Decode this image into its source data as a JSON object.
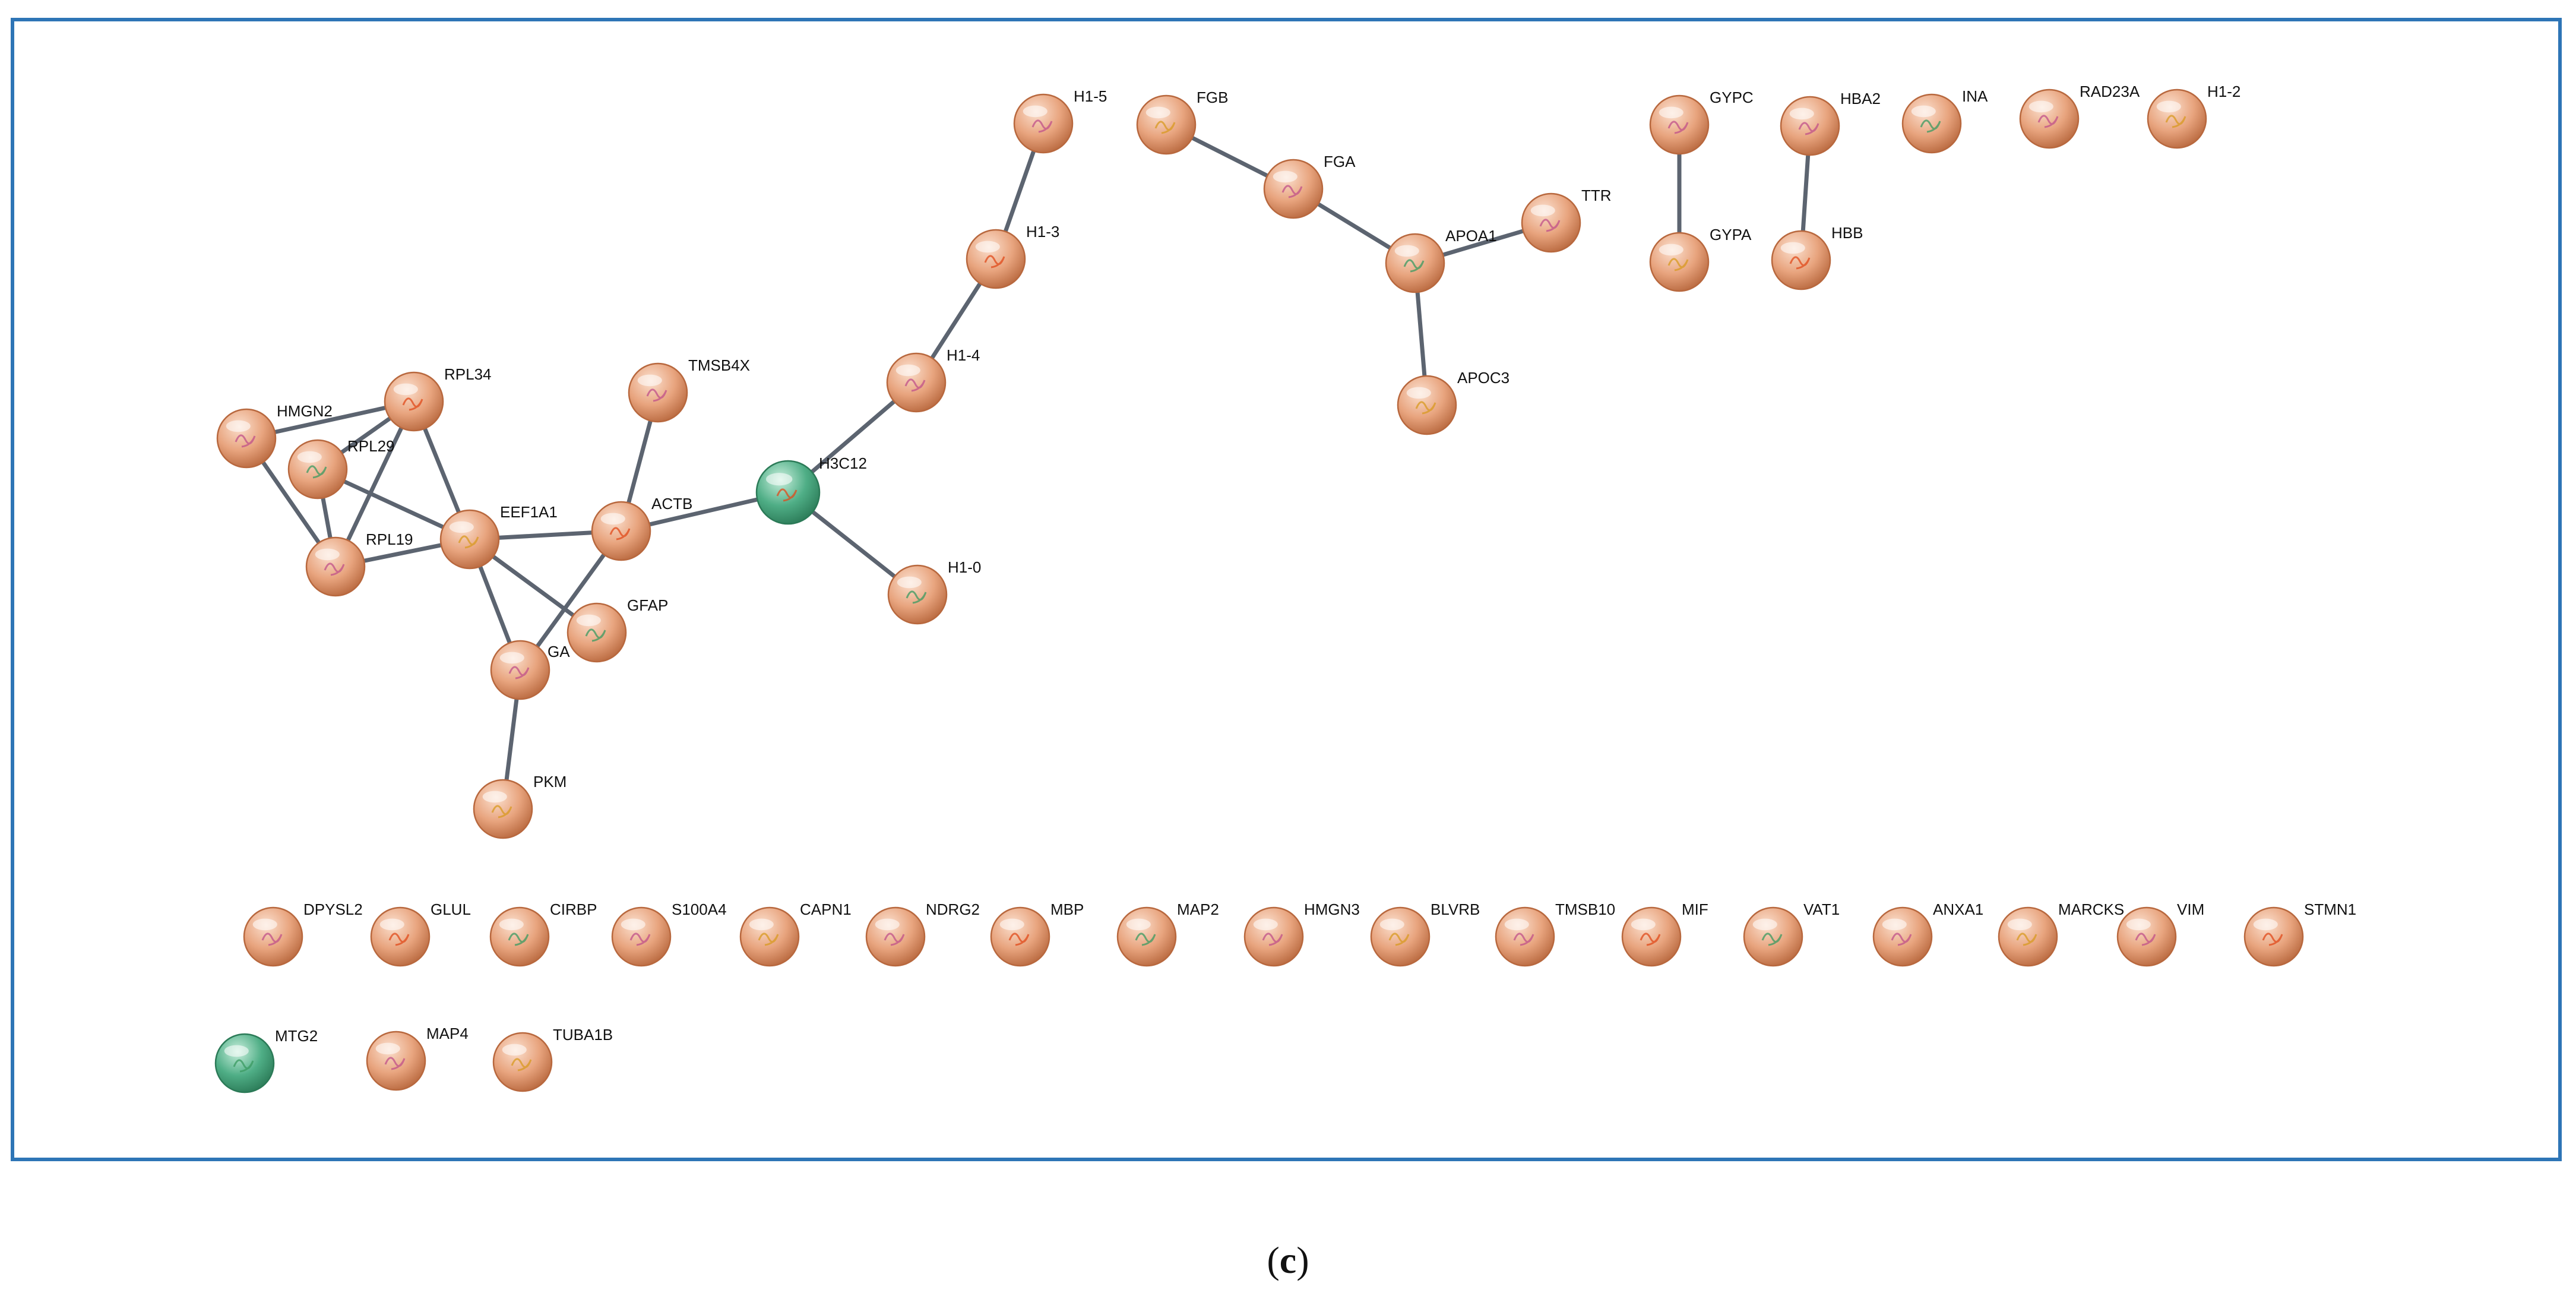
{
  "figure": {
    "caption_open": "(",
    "caption_letter": "c",
    "caption_close": ")",
    "colors": {
      "query_node": "#e8a47e",
      "query_node_light": "#fbe0cf",
      "query_node_dark": "#b8683e",
      "added_node": "#4fae86",
      "added_node_light": "#c9efdd",
      "added_node_dark": "#2b7a57",
      "edge": "#5c6470",
      "frame": "#2e75b6"
    }
  },
  "nodes": [
    {
      "id": "H1-5",
      "label": "H1-5",
      "type": "query"
    },
    {
      "id": "FGB",
      "label": "FGB",
      "type": "query"
    },
    {
      "id": "FGA",
      "label": "FGA",
      "type": "query"
    },
    {
      "id": "H1-3",
      "label": "H1-3",
      "type": "query"
    },
    {
      "id": "APOA1",
      "label": "APOA1",
      "type": "query"
    },
    {
      "id": "TTR",
      "label": "TTR",
      "type": "query"
    },
    {
      "id": "APOC3",
      "label": "APOC3",
      "type": "query"
    },
    {
      "id": "H1-4",
      "label": "H1-4",
      "type": "query"
    },
    {
      "id": "H3C12",
      "label": "H3C12",
      "type": "added"
    },
    {
      "id": "H1-0",
      "label": "H1-0",
      "type": "query"
    },
    {
      "id": "GYPC",
      "label": "GYPC",
      "type": "query"
    },
    {
      "id": "GYPA",
      "label": "GYPA",
      "type": "query"
    },
    {
      "id": "HBA2",
      "label": "HBA2",
      "type": "query"
    },
    {
      "id": "HBB",
      "label": "HBB",
      "type": "query"
    },
    {
      "id": "INA",
      "label": "INA",
      "type": "query"
    },
    {
      "id": "RAD23A",
      "label": "RAD23A",
      "type": "query"
    },
    {
      "id": "H1-2",
      "label": "H1-2",
      "type": "query"
    },
    {
      "id": "HMGN2",
      "label": "HMGN2",
      "type": "query"
    },
    {
      "id": "RPL34",
      "label": "RPL34",
      "type": "query"
    },
    {
      "id": "RPL29",
      "label": "RPL29",
      "type": "query"
    },
    {
      "id": "RPL19",
      "label": "RPL19",
      "type": "query"
    },
    {
      "id": "EEF1A1",
      "label": "EEF1A1",
      "type": "query"
    },
    {
      "id": "TMSB4X",
      "label": "TMSB4X",
      "type": "query"
    },
    {
      "id": "ACTB",
      "label": "ACTB",
      "type": "query"
    },
    {
      "id": "GFAP",
      "label": "GFAP",
      "type": "query"
    },
    {
      "id": "GAPDH",
      "label": "GA",
      "type": "query"
    },
    {
      "id": "PKM",
      "label": "PKM",
      "type": "query"
    },
    {
      "id": "DPYSL2",
      "label": "DPYSL2",
      "type": "query"
    },
    {
      "id": "GLUL",
      "label": "GLUL",
      "type": "query"
    },
    {
      "id": "CIRBP",
      "label": "CIRBP",
      "type": "query"
    },
    {
      "id": "S100A4",
      "label": "S100A4",
      "type": "query"
    },
    {
      "id": "CAPN1",
      "label": "CAPN1",
      "type": "query"
    },
    {
      "id": "NDRG2",
      "label": "NDRG2",
      "type": "query"
    },
    {
      "id": "MBP",
      "label": "MBP",
      "type": "query"
    },
    {
      "id": "MAP2",
      "label": "MAP2",
      "type": "query"
    },
    {
      "id": "HMGN3",
      "label": "HMGN3",
      "type": "query"
    },
    {
      "id": "BLVRB",
      "label": "BLVRB",
      "type": "query"
    },
    {
      "id": "TMSB10",
      "label": "TMSB10",
      "type": "query"
    },
    {
      "id": "MIF",
      "label": "MIF",
      "type": "query"
    },
    {
      "id": "VAT1",
      "label": "VAT1",
      "type": "query"
    },
    {
      "id": "ANXA1",
      "label": "ANXA1",
      "type": "query"
    },
    {
      "id": "MARCKS",
      "label": "MARCKS",
      "type": "query"
    },
    {
      "id": "VIM",
      "label": "VIM",
      "type": "query"
    },
    {
      "id": "STMN1",
      "label": "STMN1",
      "type": "query"
    },
    {
      "id": "MTG2",
      "label": "MTG2",
      "type": "added"
    },
    {
      "id": "MAP4",
      "label": "MAP4",
      "type": "query"
    },
    {
      "id": "TUBA1B",
      "label": "TUBA1B",
      "type": "query"
    }
  ],
  "edges": [
    [
      "H1-5",
      "H1-3"
    ],
    [
      "H1-3",
      "H1-4"
    ],
    [
      "H1-4",
      "H3C12"
    ],
    [
      "H3C12",
      "H1-0"
    ],
    [
      "H3C12",
      "ACTB"
    ],
    [
      "FGB",
      "FGA"
    ],
    [
      "FGA",
      "APOA1"
    ],
    [
      "APOA1",
      "TTR"
    ],
    [
      "APOA1",
      "APOC3"
    ],
    [
      "GYPC",
      "GYPA"
    ],
    [
      "HBA2",
      "HBB"
    ],
    [
      "HMGN2",
      "RPL34"
    ],
    [
      "HMGN2",
      "RPL19"
    ],
    [
      "RPL34",
      "RPL29"
    ],
    [
      "RPL34",
      "RPL19"
    ],
    [
      "RPL34",
      "EEF1A1"
    ],
    [
      "RPL29",
      "RPL19"
    ],
    [
      "RPL29",
      "EEF1A1"
    ],
    [
      "RPL19",
      "EEF1A1"
    ],
    [
      "EEF1A1",
      "ACTB"
    ],
    [
      "EEF1A1",
      "GAPDH"
    ],
    [
      "EEF1A1",
      "GFAP"
    ],
    [
      "TMSB4X",
      "ACTB"
    ],
    [
      "ACTB",
      "GAPDH"
    ],
    [
      "GAPDH",
      "PKM"
    ]
  ]
}
